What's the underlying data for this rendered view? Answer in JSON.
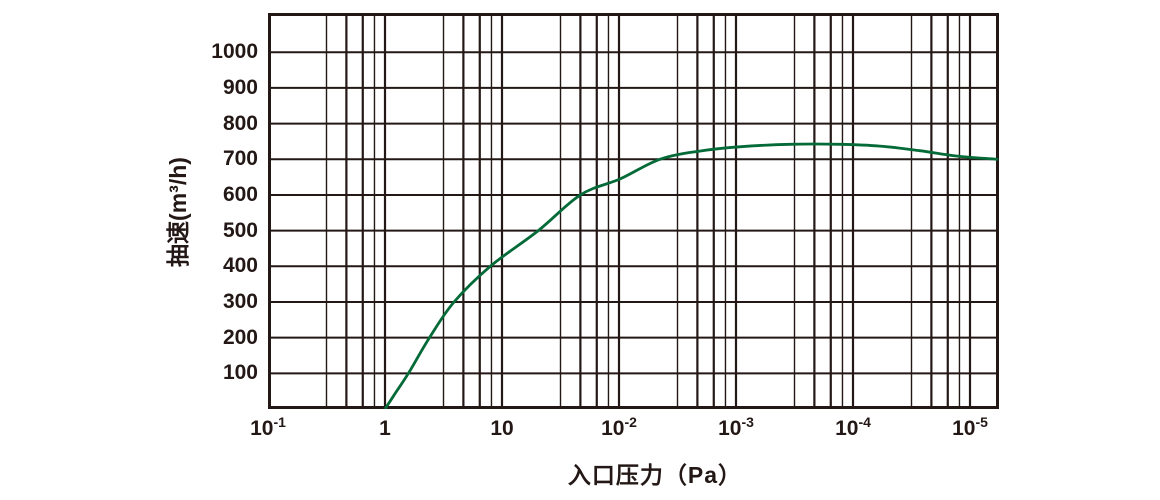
{
  "chart_data": {
    "type": "line",
    "title": "",
    "xlabel": "入口压力（Pa）",
    "ylabel": "抽速(m³/h)",
    "x_scale": "log-decades",
    "x_tick_labels": [
      {
        "base": "10",
        "exp": "-1"
      },
      {
        "base": "1",
        "exp": ""
      },
      {
        "base": "10",
        "exp": ""
      },
      {
        "base": "10",
        "exp": "-2"
      },
      {
        "base": "10",
        "exp": "-3"
      },
      {
        "base": "10",
        "exp": "-4"
      },
      {
        "base": "10",
        "exp": "-5"
      }
    ],
    "x_decades_total": 6.24,
    "y_ticks": [
      100,
      200,
      300,
      400,
      500,
      600,
      700,
      800,
      900,
      1000
    ],
    "y_axis_top_value": 1110,
    "y_axis_bottom_value": 0,
    "grid": true,
    "minor_grid_offsets": [
      0.5,
      0.67,
      0.81,
      0.91
    ],
    "legend": "none",
    "axis_color": "#231815",
    "curve_color": "#046a38",
    "series": [
      {
        "name": "pumping-speed-curve",
        "points_decade_value": [
          [
            1.0,
            0
          ],
          [
            1.09,
            45
          ],
          [
            1.2,
            100
          ],
          [
            1.38,
            200
          ],
          [
            1.59,
            300
          ],
          [
            1.9,
            400
          ],
          [
            2.31,
            500
          ],
          [
            2.67,
            600
          ],
          [
            3.01,
            645
          ],
          [
            3.35,
            700
          ],
          [
            3.69,
            723
          ],
          [
            4.03,
            735
          ],
          [
            4.46,
            742
          ],
          [
            4.89,
            742
          ],
          [
            5.23,
            737
          ],
          [
            5.57,
            724
          ],
          [
            5.91,
            708
          ],
          [
            6.24,
            700
          ]
        ]
      }
    ]
  }
}
